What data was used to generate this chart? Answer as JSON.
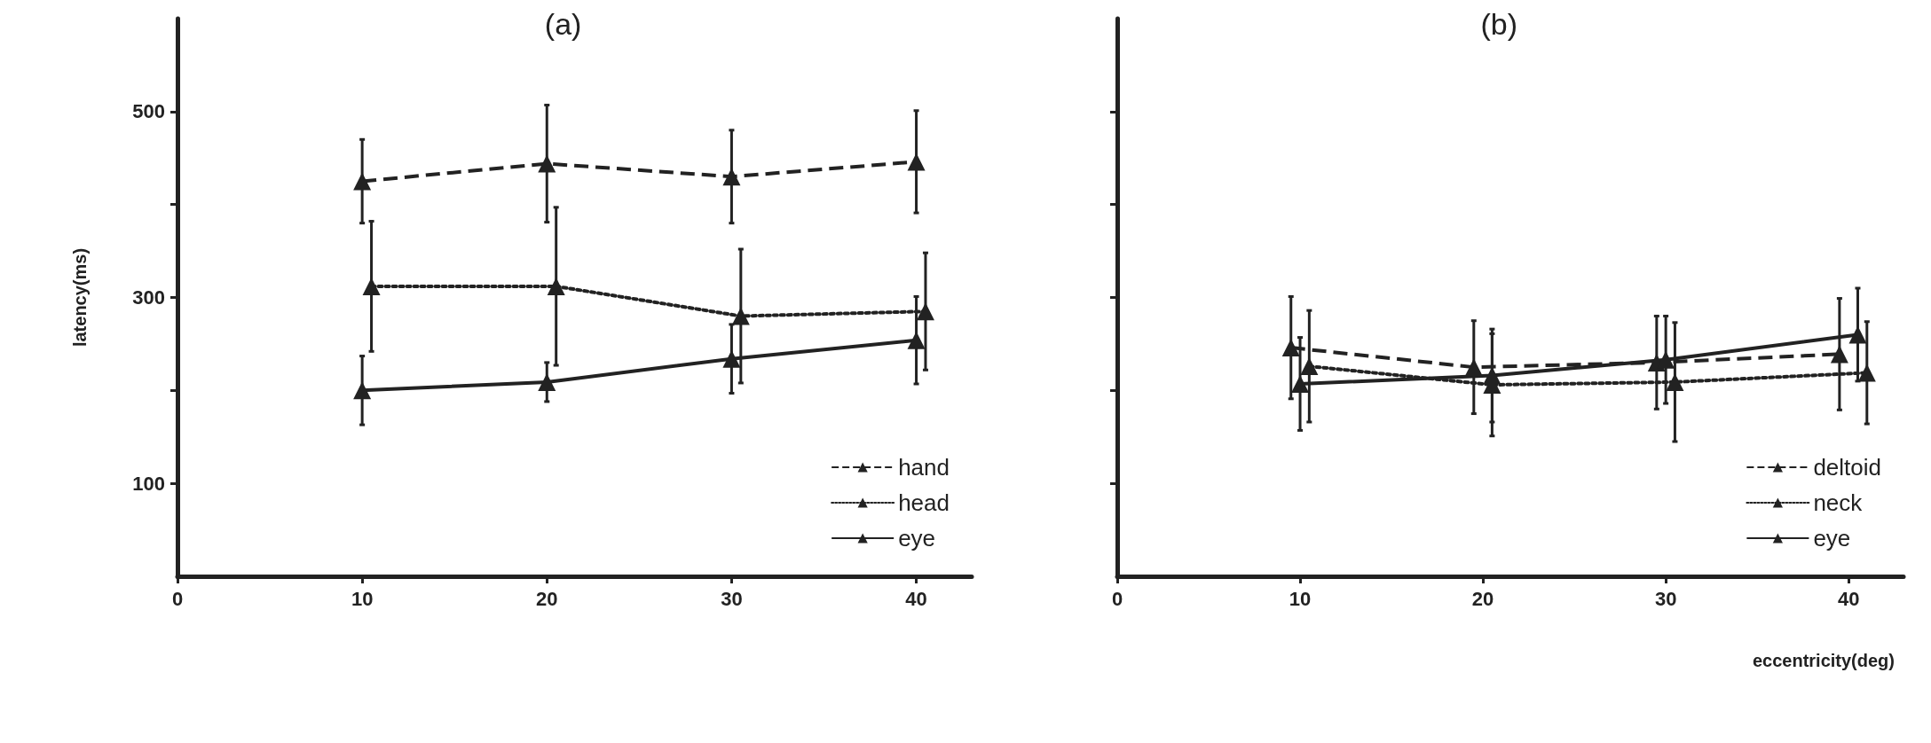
{
  "chart_data": [
    {
      "type": "line",
      "title": "(a)",
      "ylabel": "latency(ms)",
      "xlim": [
        0,
        43
      ],
      "ylim": [
        0,
        600
      ],
      "xticks": [
        0,
        10,
        20,
        30,
        40
      ],
      "yticks": [
        100,
        {
          "value": 200,
          "label": null
        },
        300,
        {
          "value": 400,
          "label": null
        },
        500
      ],
      "marker": "triangle",
      "legend": "bottom right",
      "grid": false,
      "series": [
        {
          "name": "hand",
          "color": "#222222",
          "line_style": "dashed",
          "x": [
            10,
            20,
            30,
            40
          ],
          "values": [
            425,
            444,
            430,
            446
          ],
          "errors": [
            45,
            63,
            50,
            55
          ]
        },
        {
          "name": "head",
          "color": "#222222",
          "line_style": "dotted",
          "x": [
            10.5,
            20.5,
            30.5,
            40.5
          ],
          "values": [
            312,
            312,
            280,
            285
          ],
          "errors": [
            70,
            85,
            72,
            63
          ]
        },
        {
          "name": "eye",
          "color": "#222222",
          "line_style": "solid",
          "x": [
            10,
            20,
            30,
            40
          ],
          "values": [
            200,
            209,
            234,
            254
          ],
          "errors": [
            37,
            21,
            37,
            47
          ]
        }
      ]
    },
    {
      "type": "line",
      "title": "(b)",
      "xlabel": "eccentricity(deg)",
      "xlim": [
        0,
        43
      ],
      "ylim": [
        0,
        600
      ],
      "xticks": [
        0,
        10,
        20,
        30,
        40
      ],
      "yticks": [
        {
          "value": 100,
          "label": null
        },
        {
          "value": 200,
          "label": null
        },
        {
          "value": 300,
          "label": null
        },
        {
          "value": 400,
          "label": null
        },
        {
          "value": 500,
          "label": null
        }
      ],
      "tick_labels": "x",
      "marker": "triangle",
      "legend": "bottom right",
      "grid": false,
      "series": [
        {
          "name": "deltoid",
          "color": "#222222",
          "line_style": "dashed",
          "x": [
            9.5,
            19.5,
            29.5,
            39.5
          ],
          "values": [
            246,
            225,
            230,
            239
          ],
          "errors": [
            55,
            50,
            50,
            60
          ]
        },
        {
          "name": "neck",
          "color": "#222222",
          "line_style": "dotted",
          "x": [
            10.5,
            20.5,
            30.5,
            41
          ],
          "values": [
            226,
            206,
            209,
            219
          ],
          "errors": [
            60,
            55,
            64,
            55
          ]
        },
        {
          "name": "eye",
          "color": "#222222",
          "line_style": "solid",
          "x": [
            10,
            20.5,
            30,
            40.5
          ],
          "values": [
            207,
            216,
            233,
            260
          ],
          "errors": [
            50,
            50,
            47,
            50
          ]
        }
      ]
    }
  ]
}
